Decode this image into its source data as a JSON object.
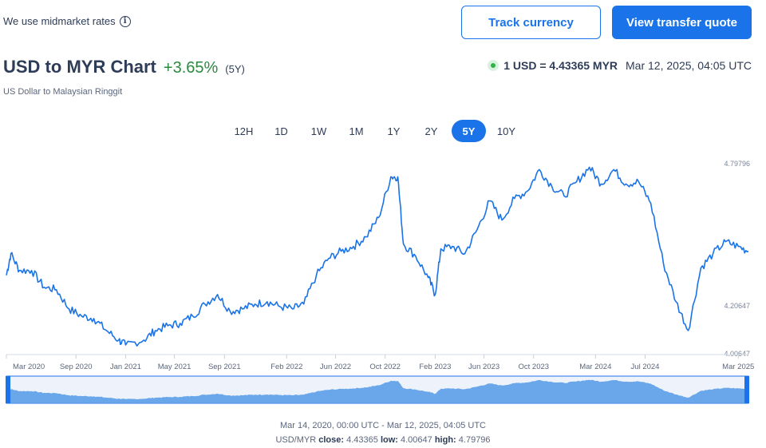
{
  "header": {
    "midmarket_text": "We use midmarket rates",
    "info_icon": "info-icon",
    "track_label": "Track currency",
    "quote_label": "View transfer quote"
  },
  "title": {
    "main": "USD to MYR Chart",
    "change": "+3.65%",
    "period": "(5Y)",
    "subtitle": "US Dollar to Malaysian Ringgit"
  },
  "rate": {
    "value": "1 USD = 4.43365 MYR",
    "time": "Mar 12, 2025, 04:05 UTC"
  },
  "ranges": [
    "12H",
    "1D",
    "1W",
    "1M",
    "1Y",
    "2Y",
    "5Y",
    "10Y"
  ],
  "active_range": "5Y",
  "colors": {
    "accent": "#1a73e8",
    "positive": "#2b8a3e",
    "line": "#1a73e8",
    "navigator_fill": "#5b9ee8"
  },
  "footer": {
    "range_text": "Mar 14, 2020, 00:00 UTC - Mar 12, 2025, 04:05 UTC",
    "pair": "USD/MYR",
    "close_label": "close:",
    "close_value": "4.43365",
    "low_label": "low:",
    "low_value": "4.00647",
    "high_label": "high:",
    "high_value": "4.79796"
  },
  "chart_data": {
    "type": "line",
    "title": "",
    "xlabel": "",
    "ylabel": "",
    "x_ticks": [
      "Mar 2020",
      "Sep 2020",
      "Jan 2021",
      "May 2021",
      "Sep 2021",
      "Feb 2022",
      "Jun 2022",
      "Oct 2022",
      "Feb 2023",
      "Jun 2023",
      "Oct 2023",
      "Mar 2024",
      "Jul 2024",
      "Mar 2025"
    ],
    "y_ticks": [
      "4.79796",
      "4.20647",
      "4.00647"
    ],
    "ylim": [
      4.00647,
      4.79796
    ],
    "grid": false,
    "series": [
      {
        "x": [
          "2020-03-14",
          "2020-03-25",
          "2020-04-15",
          "2020-05-15",
          "2020-06-15",
          "2020-07-15",
          "2020-08-15",
          "2020-09-15",
          "2020-10-15",
          "2020-11-15",
          "2020-12-15",
          "2021-01-01",
          "2021-02-15",
          "2021-03-15",
          "2021-04-15",
          "2021-05-15",
          "2021-06-15",
          "2021-07-15",
          "2021-08-15",
          "2021-09-15",
          "2021-10-15",
          "2021-11-15",
          "2021-12-15",
          "2022-01-15",
          "2022-02-15",
          "2022-03-15",
          "2022-04-15",
          "2022-05-15",
          "2022-06-15",
          "2022-07-15",
          "2022-08-15",
          "2022-09-15",
          "2022-10-15",
          "2022-11-01",
          "2022-11-15",
          "2022-12-15",
          "2023-01-15",
          "2023-02-01",
          "2023-02-15",
          "2023-03-15",
          "2023-04-15",
          "2023-05-15",
          "2023-06-15",
          "2023-07-15",
          "2023-08-15",
          "2023-09-15",
          "2023-10-15",
          "2023-11-15",
          "2023-12-15",
          "2024-01-15",
          "2024-02-15",
          "2024-03-15",
          "2024-04-15",
          "2024-05-15",
          "2024-06-15",
          "2024-07-15",
          "2024-08-15",
          "2024-09-15",
          "2024-10-15",
          "2024-11-15",
          "2024-12-15",
          "2025-01-15",
          "2025-02-15",
          "2025-03-12"
        ],
        "values": [
          4.33,
          4.42,
          4.35,
          4.35,
          4.28,
          4.27,
          4.19,
          4.16,
          4.15,
          4.1,
          4.06,
          4.04,
          4.06,
          4.1,
          4.12,
          4.13,
          4.16,
          4.21,
          4.25,
          4.18,
          4.19,
          4.21,
          4.22,
          4.2,
          4.19,
          4.21,
          4.33,
          4.4,
          4.43,
          4.45,
          4.49,
          4.57,
          4.74,
          4.74,
          4.46,
          4.41,
          4.32,
          4.25,
          4.44,
          4.45,
          4.42,
          4.52,
          4.64,
          4.56,
          4.65,
          4.68,
          4.77,
          4.7,
          4.66,
          4.72,
          4.78,
          4.71,
          4.77,
          4.71,
          4.72,
          4.63,
          4.38,
          4.22,
          4.1,
          4.36,
          4.42,
          4.47,
          4.45,
          4.43
        ]
      }
    ]
  }
}
